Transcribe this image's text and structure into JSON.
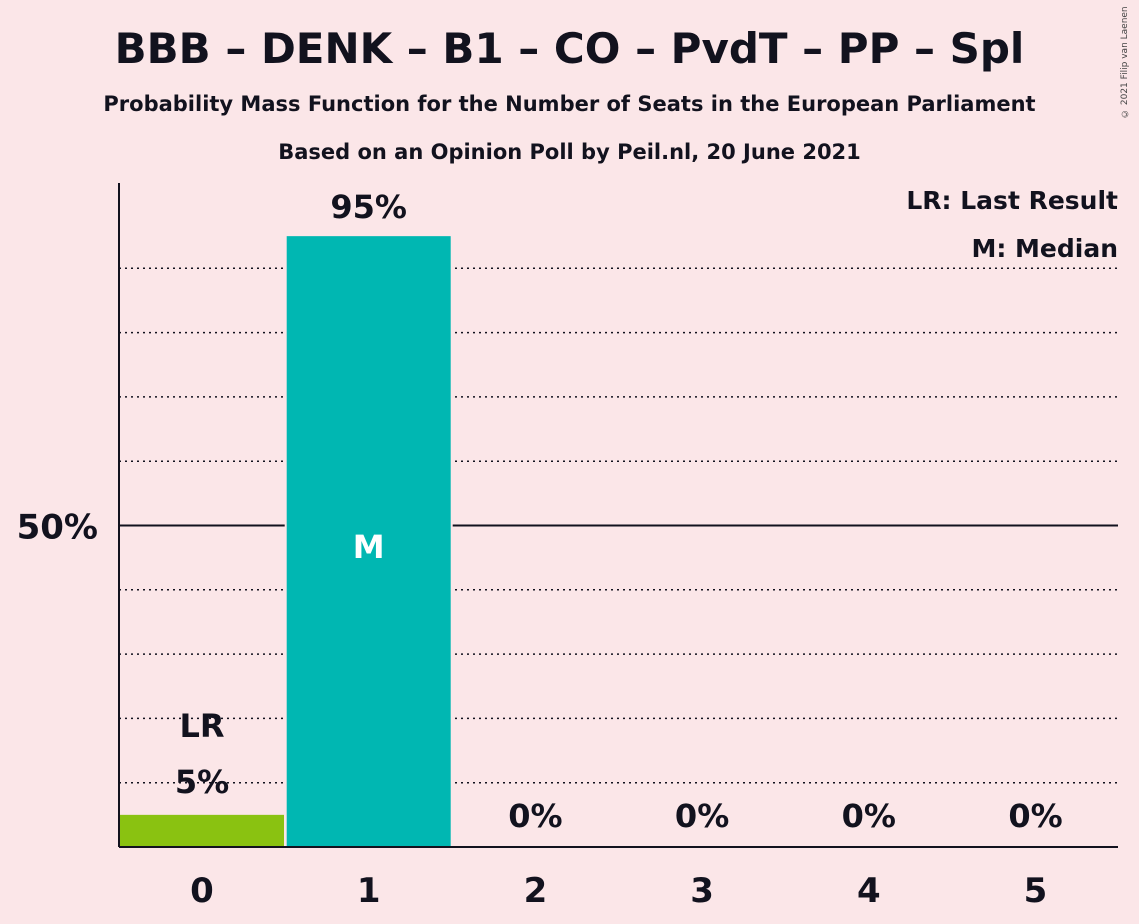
{
  "header": {
    "title": "BBB – DENK – B1 – CO – PvdT – PP – Spl",
    "subtitle": "Probability Mass Function for the Number of Seats in the European Parliament",
    "source": "Based on an Opinion Poll by Peil.nl, 20 June 2021",
    "copyright": "© 2021 Filip van Laenen"
  },
  "legend": {
    "last_result": "LR: Last Result",
    "median": "M: Median",
    "placement": "top-right"
  },
  "colors": {
    "background": "#fbe6e8",
    "bar_main": "#00b7b2",
    "bar_last_result": "#8ac211",
    "text": "#12121e"
  },
  "chart_data": {
    "type": "bar",
    "title": "BBB – DENK – B1 – CO – PvdT – PP – Spl",
    "categories": [
      "0",
      "1",
      "2",
      "3",
      "4",
      "5"
    ],
    "values": [
      5,
      95,
      0,
      0,
      0,
      0
    ],
    "value_labels": [
      "5%",
      "95%",
      "0%",
      "0%",
      "0%",
      "0%"
    ],
    "ylim": [
      0,
      100
    ],
    "y_tick_labels": [
      "50%"
    ],
    "y_ticks": [
      50
    ],
    "grid": true,
    "gridline_values": [
      10,
      20,
      30,
      40,
      60,
      70,
      80,
      90
    ],
    "last_result_seat": 0,
    "last_result_marker": "LR",
    "median_seat": 1,
    "median_marker": "M"
  }
}
